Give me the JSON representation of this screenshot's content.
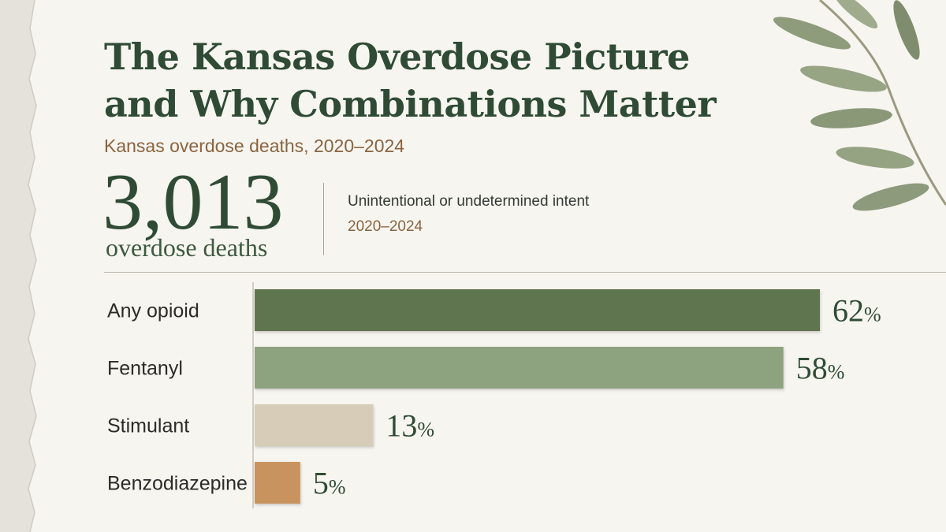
{
  "header": {
    "title_line1": "The Kansas Overdose Picture",
    "title_line2": "and Why Combinations Matter",
    "subtitle": "Kansas overdose deaths, 2020–2024"
  },
  "summary": {
    "total_deaths": "3,013",
    "total_label": "overdose deaths",
    "note_line1": "Unintentional or undetermined intent",
    "note_line2": "2020–2024"
  },
  "colors": {
    "title": "#2f4b35",
    "accent_brown": "#8a6440",
    "paper": "#f7f5f0"
  },
  "chart_data": {
    "type": "bar",
    "orientation": "horizontal",
    "categories": [
      "Any opioid",
      "Fentanyl",
      "Stimulant",
      "Benzodiazepine"
    ],
    "values": [
      62,
      58,
      13,
      5
    ],
    "value_suffix": "%",
    "colors": [
      "#5e7450",
      "#8da27f",
      "#d6ccb8",
      "#c8935e"
    ],
    "xlim": [
      0,
      62
    ],
    "grid": false,
    "legend": "none"
  }
}
